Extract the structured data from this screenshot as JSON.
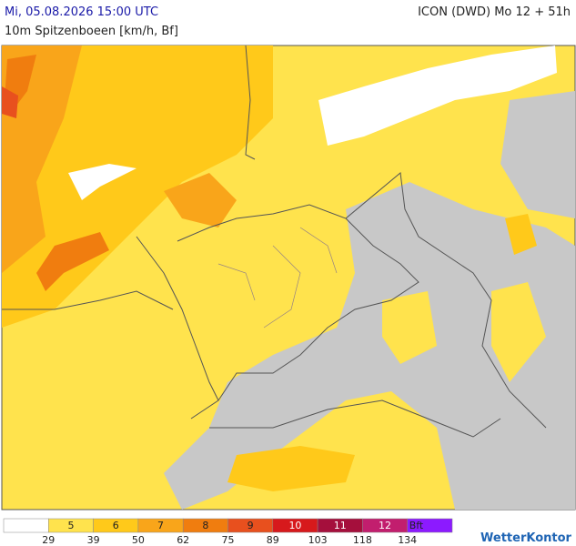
{
  "header": {
    "datetime": "Mi, 05.08.2026 15:00 UTC",
    "model": "ICON (DWD) Mo 12 + 51h",
    "parameter": "10m Spitzenboeen [km/h, Bf]"
  },
  "legend": {
    "colors": [
      "#ffffff",
      "#ffe34d",
      "#ffc91a",
      "#f9a51a",
      "#f07d0f",
      "#e8501e",
      "#d7191c",
      "#a50f3c",
      "#c21e6e",
      "#8c1aff"
    ],
    "bft": [
      "5",
      "6",
      "7",
      "8",
      "9",
      "10",
      "11",
      "12",
      "Bft"
    ],
    "kmh": [
      "29",
      "39",
      "50",
      "62",
      "75",
      "89",
      "103",
      "118",
      "134"
    ]
  },
  "logo": "WetterKontor"
}
